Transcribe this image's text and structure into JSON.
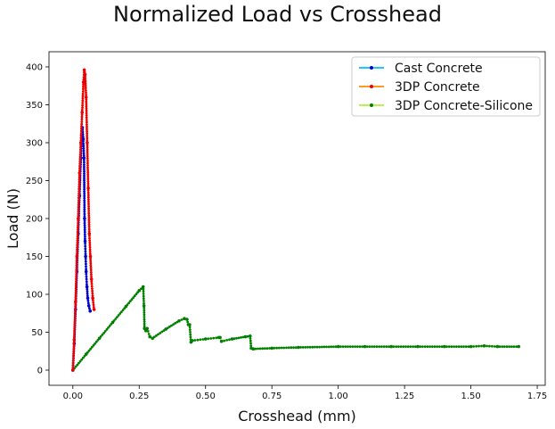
{
  "chart_data": {
    "type": "line",
    "title": "Normalized Load vs Crosshead",
    "xlabel": "Crosshead (mm)",
    "ylabel": "Load (N)",
    "xlim": [
      -0.09,
      1.78
    ],
    "ylim": [
      -20,
      420
    ],
    "xticks": [
      0.0,
      0.25,
      0.5,
      0.75,
      1.0,
      1.25,
      1.5,
      1.75
    ],
    "xtick_labels": [
      "0.00",
      "0.25",
      "0.50",
      "0.75",
      "1.00",
      "1.25",
      "1.50",
      "1.75"
    ],
    "yticks": [
      0,
      50,
      100,
      150,
      200,
      250,
      300,
      350,
      400
    ],
    "ytick_labels": [
      "0",
      "50",
      "100",
      "150",
      "200",
      "250",
      "300",
      "350",
      "400"
    ],
    "grid": false,
    "legend_position": "top-right",
    "series": [
      {
        "name": "3DP Concrete-Silicone",
        "line_color": "#b3ee3a",
        "marker_color": "#008000",
        "x": [
          0.0,
          0.05,
          0.1,
          0.15,
          0.2,
          0.25,
          0.265,
          0.268,
          0.27,
          0.275,
          0.28,
          0.29,
          0.3,
          0.35,
          0.4,
          0.42,
          0.43,
          0.435,
          0.44,
          0.445,
          0.45,
          0.5,
          0.55,
          0.555,
          0.56,
          0.6,
          0.65,
          0.668,
          0.672,
          0.68,
          0.75,
          0.85,
          1.0,
          1.1,
          1.2,
          1.3,
          1.4,
          1.5,
          1.55,
          1.6,
          1.68
        ],
        "y": [
          0,
          21,
          42,
          63,
          84,
          105,
          110,
          85,
          55,
          52,
          55,
          44,
          42,
          54,
          65,
          68,
          67,
          60,
          60,
          37,
          39,
          41,
          43,
          43,
          38,
          41,
          44,
          45,
          29,
          28,
          29,
          30,
          31,
          31,
          31,
          31,
          31,
          31,
          32,
          31,
          31
        ]
      },
      {
        "name": "Cast Concrete",
        "line_color": "#00bfff",
        "marker_color": "#0000cc",
        "x": [
          0.0,
          0.005,
          0.01,
          0.015,
          0.02,
          0.025,
          0.03,
          0.033,
          0.036,
          0.039,
          0.042,
          0.044,
          0.046,
          0.048,
          0.05,
          0.053,
          0.056,
          0.06,
          0.065
        ],
        "y": [
          0,
          35,
          80,
          130,
          180,
          230,
          280,
          310,
          320,
          305,
          280,
          200,
          170,
          150,
          130,
          110,
          95,
          85,
          78
        ]
      },
      {
        "name": "3DP Concrete",
        "line_color": "#ff8c00",
        "marker_color": "#ee0000",
        "x": [
          0.0,
          0.005,
          0.01,
          0.015,
          0.02,
          0.025,
          0.03,
          0.035,
          0.04,
          0.043,
          0.046,
          0.05,
          0.054,
          0.058,
          0.062,
          0.066,
          0.07,
          0.075,
          0.08
        ],
        "y": [
          0,
          40,
          90,
          150,
          200,
          260,
          300,
          340,
          380,
          396,
          390,
          360,
          300,
          240,
          180,
          150,
          120,
          95,
          80
        ]
      }
    ],
    "legend_order": [
      "Cast Concrete",
      "3DP Concrete",
      "3DP Concrete-Silicone"
    ]
  }
}
